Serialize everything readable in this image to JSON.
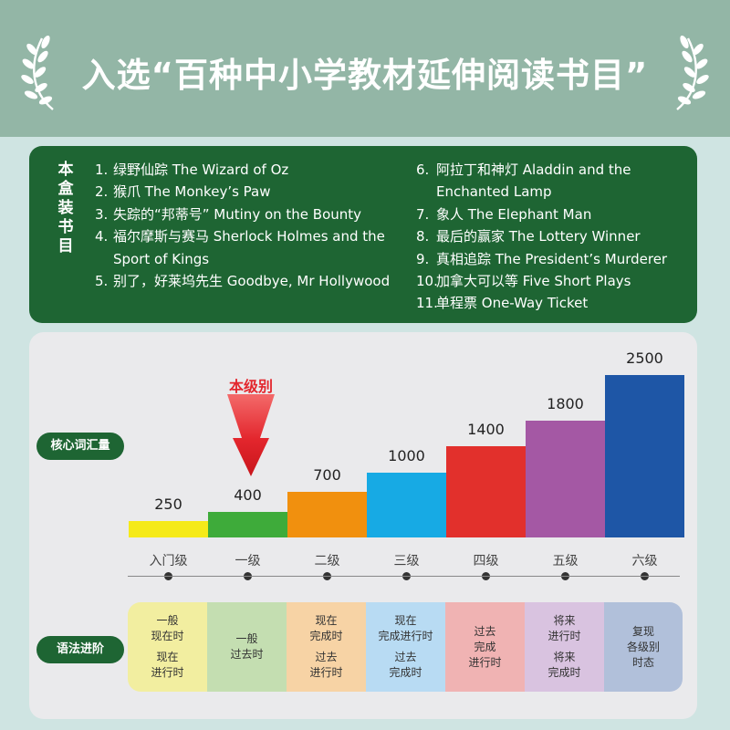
{
  "header": {
    "title": "入选“百种中小学教材延伸阅读书目”"
  },
  "booklist": {
    "label": "本盒装书目",
    "left": [
      {
        "num": "1.",
        "text": "绿野仙踪 The Wizard of Oz"
      },
      {
        "num": "2.",
        "text": "猴爪 The Monkey’s Paw"
      },
      {
        "num": "3.",
        "text": "失踪的“邦蒂号” Mutiny on the Bounty"
      },
      {
        "num": "4.",
        "text": "福尔摩斯与赛马 Sherlock Holmes and the Sport of Kings"
      },
      {
        "num": "5.",
        "text": "别了，好莱坞先生 Goodbye, Mr Hollywood"
      }
    ],
    "right": [
      {
        "num": "6.",
        "text": "阿拉丁和神灯 Aladdin and the Enchanted Lamp"
      },
      {
        "num": "7.",
        "text": "象人 The Elephant Man"
      },
      {
        "num": "8.",
        "text": "最后的赢家 The Lottery Winner"
      },
      {
        "num": "9.",
        "text": "真相追踪 The President’s Murderer"
      },
      {
        "num": "10.",
        "text": "加拿大可以等 Five Short Plays"
      },
      {
        "num": "11.",
        "text": "单程票 One-Way Ticket"
      }
    ]
  },
  "vocab": {
    "label": "核心词汇量",
    "current_level_marker": "本级别",
    "current_level_index": 1
  },
  "grammar": {
    "label": "语法进阶",
    "cells": [
      {
        "level": "入门级",
        "items": [
          [
            "一般",
            "现在时"
          ],
          [
            "现在",
            "进行时"
          ]
        ],
        "color": "#f2eea0"
      },
      {
        "level": "一级",
        "items": [
          [
            "一般",
            "过去时"
          ]
        ],
        "color": "#c4deb1"
      },
      {
        "level": "二级",
        "items": [
          [
            "现在",
            "完成时"
          ],
          [
            "过去",
            "进行时"
          ]
        ],
        "color": "#f7d3a5"
      },
      {
        "level": "三级",
        "items": [
          [
            "现在",
            "完成进行时"
          ],
          [
            "过去",
            "完成时"
          ]
        ],
        "color": "#b8dbf3"
      },
      {
        "level": "四级",
        "items": [
          [
            "过去",
            "完成",
            "进行时"
          ]
        ],
        "color": "#f0b3b3"
      },
      {
        "level": "五级",
        "items": [
          [
            "将来",
            "进行时"
          ],
          [
            "将来",
            "完成时"
          ]
        ],
        "color": "#d9c3e0"
      },
      {
        "level": "六级",
        "items": [
          [
            "复现",
            "各级别",
            "时态"
          ]
        ],
        "color": "#b1c0da"
      }
    ]
  },
  "chart_data": {
    "type": "bar",
    "title": "",
    "xlabel": "",
    "ylabel": "核心词汇量",
    "categories": [
      "入门级",
      "一级",
      "二级",
      "三级",
      "四级",
      "五级",
      "六级"
    ],
    "values": [
      250,
      400,
      700,
      1000,
      1400,
      1800,
      2500
    ],
    "colors": [
      "#f5ea19",
      "#3eab3a",
      "#f1900e",
      "#17aae4",
      "#e2302c",
      "#a458a4",
      "#1e56a6"
    ],
    "ylim": [
      0,
      2500
    ],
    "grid": false,
    "legend": "none"
  }
}
